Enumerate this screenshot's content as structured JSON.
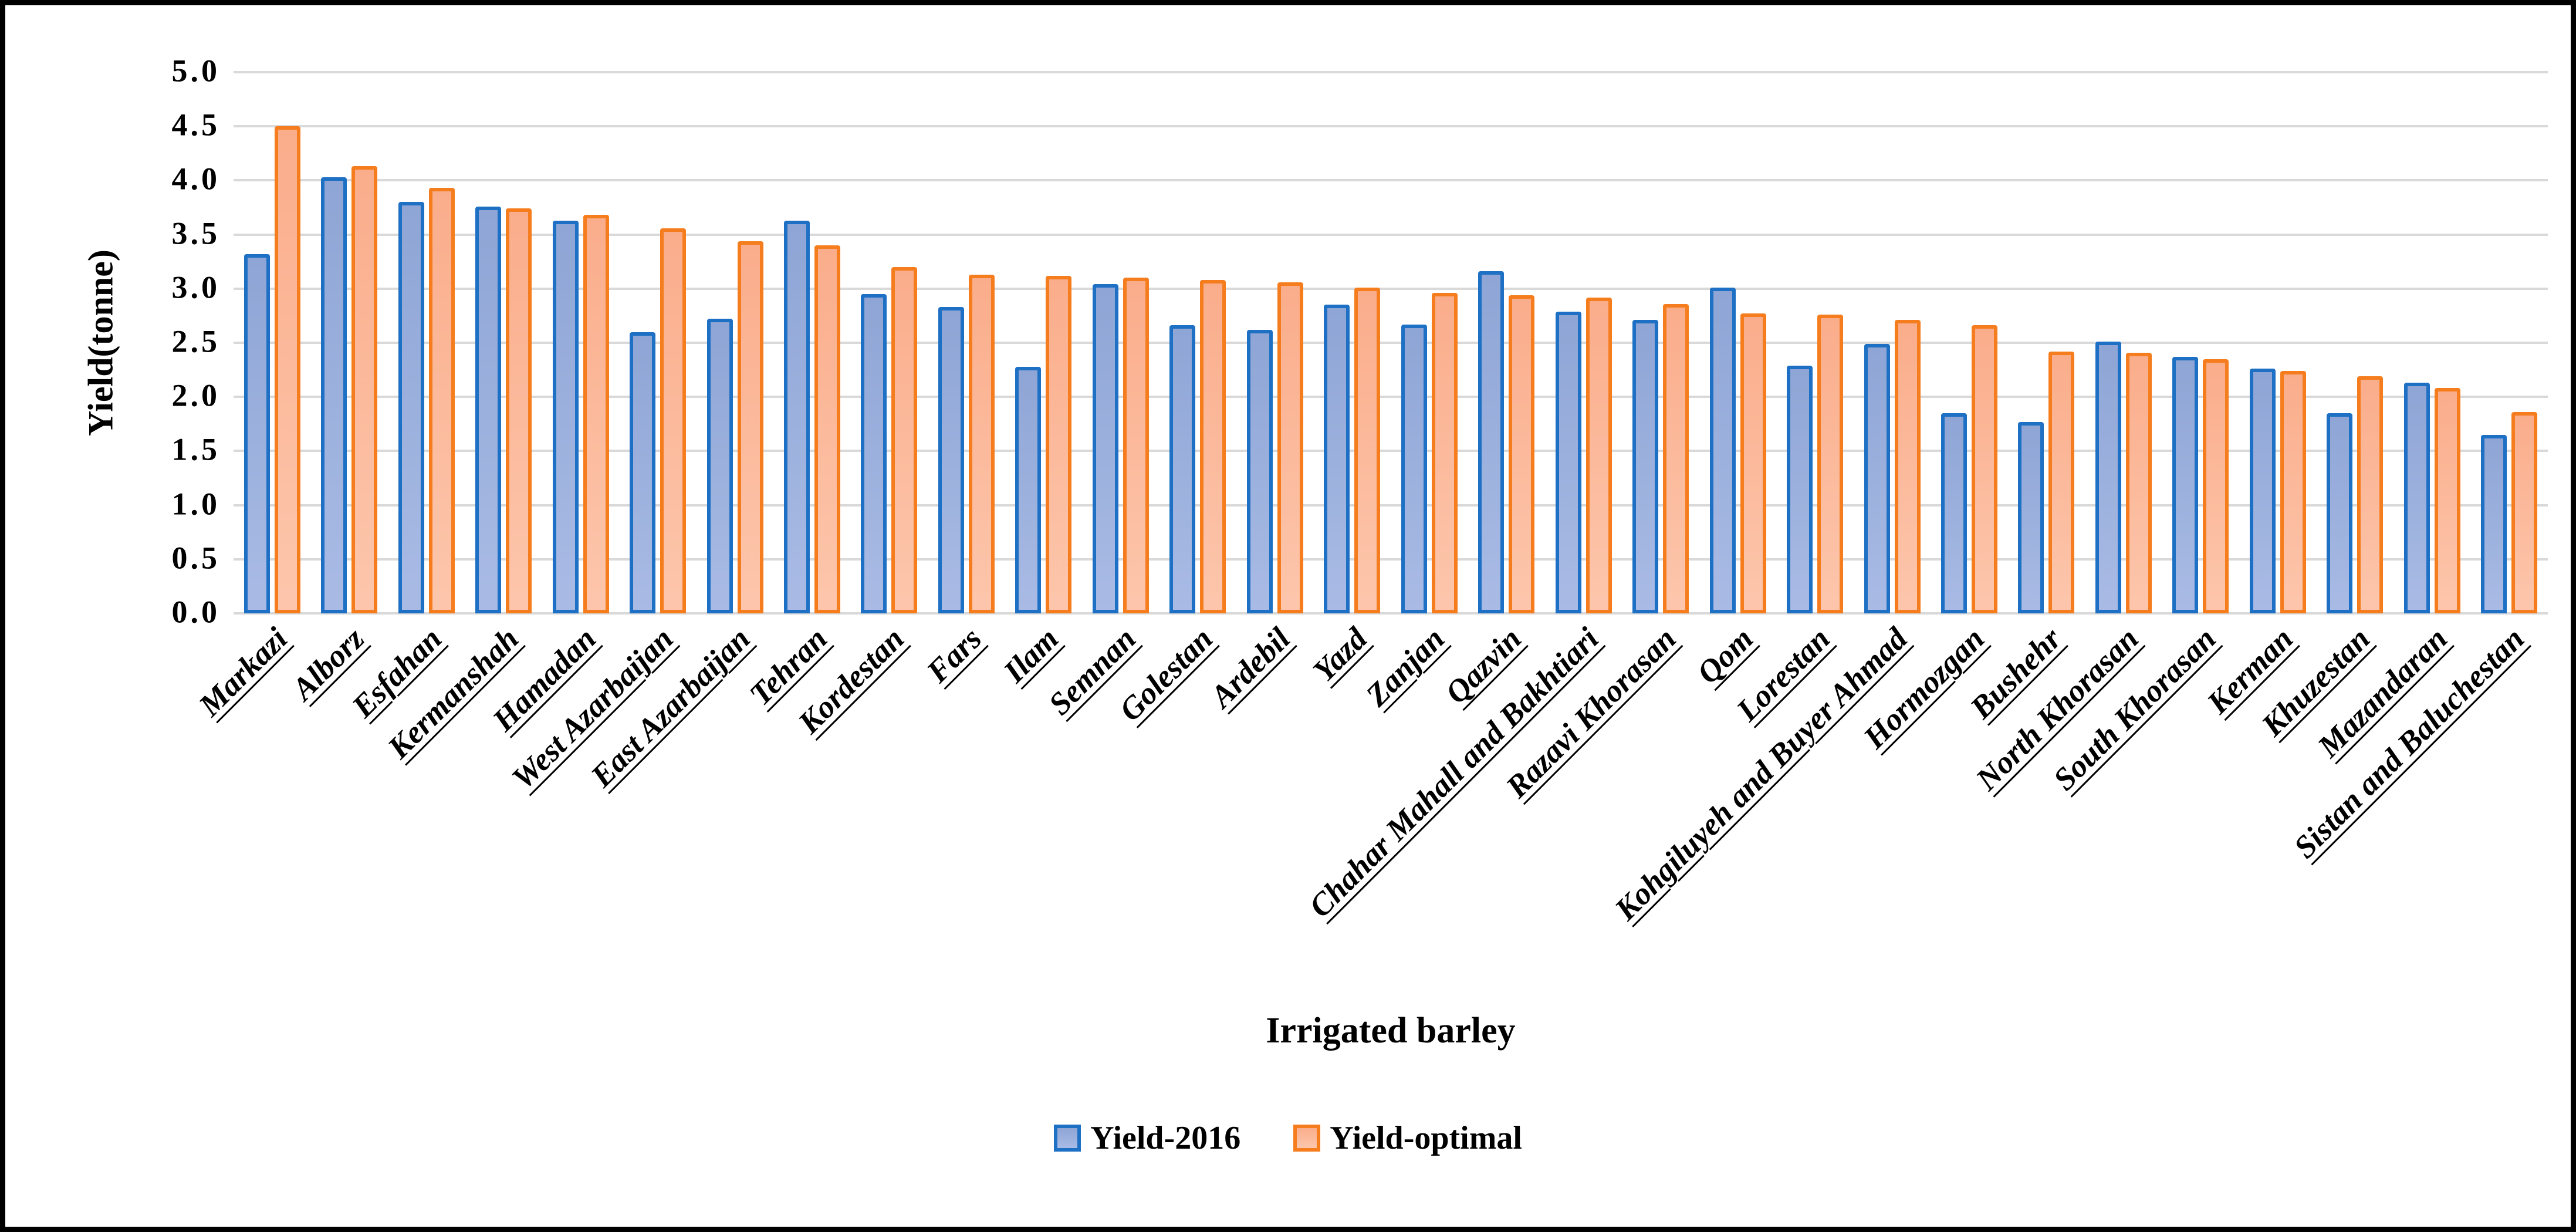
{
  "figure": {
    "y_axis": {
      "title": "Yield(tonne)",
      "ticks": [
        "5.0",
        "4.5",
        "4.0",
        "3.5",
        "3.0",
        "2.5",
        "2.0",
        "1.5",
        "1.0",
        "0.5",
        "0.0"
      ]
    },
    "x_axis": {
      "title": "Irrigated barley"
    },
    "legend": {
      "items": [
        {
          "label": "Yield-2016"
        },
        {
          "label": "Yield-optimal"
        }
      ]
    },
    "colors": {
      "series1_border": "#1d70c4",
      "series1_fill_top": "#8ea5d5",
      "series1_fill_bottom": "#a9bbe5",
      "series2_border": "#f57d1e",
      "series2_fill_top": "#faad8b",
      "series2_fill_bottom": "#fdc6ac",
      "gridline": "#d9d9d9",
      "frame": "#000000"
    }
  },
  "chart_data": {
    "type": "bar",
    "title": "",
    "xlabel": "Irrigated barley",
    "ylabel": "Yield(tonne)",
    "ylim": [
      0,
      5
    ],
    "ytick_step": 0.5,
    "grid": true,
    "legend_position": "bottom",
    "categories": [
      "Markazi",
      "Alborz",
      "Esfahan",
      "Kermanshah",
      "Hamadan",
      "West Azarbaijan",
      "East Azarbaijan",
      "Tehran",
      "Kordestan",
      "Fars",
      "Ilam",
      "Semnan",
      "Golestan",
      "Ardebil",
      "Yazd",
      "Zanjan",
      "Qazvin",
      "Chahar Mahall and Bakhtiari",
      "Razavi Khorasan",
      "Qom",
      "Lorestan",
      "Kohgiluyeh and Buyer Ahmad",
      "Hormozgan",
      "Bushehr",
      "North Khorasan",
      "South Khorasan",
      "Kerman",
      "Khuzestan",
      "Mazandaran",
      "Sistan and Baluchestan"
    ],
    "series": [
      {
        "name": "Yield-2016",
        "values": [
          3.32,
          4.03,
          3.8,
          3.76,
          3.63,
          2.6,
          2.72,
          3.63,
          2.95,
          2.83,
          2.28,
          3.04,
          2.66,
          2.62,
          2.85,
          2.67,
          3.16,
          2.79,
          2.71,
          3.01,
          2.29,
          2.49,
          1.85,
          1.77,
          2.51,
          2.37,
          2.26,
          1.85,
          2.13,
          1.65
        ]
      },
      {
        "name": "Yield-optimal",
        "values": [
          4.5,
          4.13,
          3.93,
          3.74,
          3.68,
          3.56,
          3.44,
          3.4,
          3.2,
          3.13,
          3.12,
          3.1,
          3.08,
          3.06,
          3.01,
          2.96,
          2.94,
          2.92,
          2.86,
          2.77,
          2.76,
          2.71,
          2.66,
          2.42,
          2.41,
          2.35,
          2.24,
          2.19,
          2.08,
          1.86
        ]
      }
    ]
  }
}
